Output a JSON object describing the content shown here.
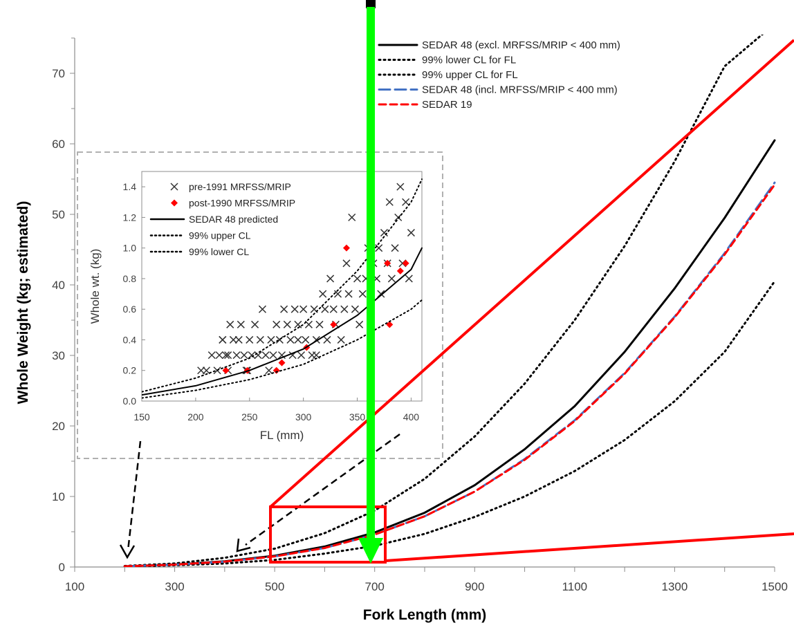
{
  "chart_data": [
    {
      "type": "line",
      "xlabel": "Fork Length (mm)",
      "ylabel": "Whole Weight (kg; estimated)",
      "xlim": [
        100,
        1500
      ],
      "ylim": [
        0,
        75
      ],
      "xticks": [
        "100",
        "300",
        "500",
        "700",
        "900",
        "1100",
        "1300",
        "1500"
      ],
      "yticks": [
        "0",
        "10",
        "20",
        "30",
        "40",
        "50",
        "60",
        "70"
      ],
      "x": [
        200,
        300,
        400,
        500,
        600,
        700,
        800,
        900,
        1000,
        1100,
        1200,
        1300,
        1400,
        1500
      ],
      "series": [
        {
          "name": "SEDAR 48 (excl. MRFSS/MRIP < 400 mm)",
          "style": "solid",
          "color": "#000000",
          "values": [
            0.1,
            0.35,
            0.8,
            1.6,
            2.9,
            4.9,
            7.7,
            11.6,
            16.7,
            22.8,
            30.5,
            39.5,
            49.5,
            60.5
          ]
        },
        {
          "name": "99% lower CL for FL",
          "style": "dotted",
          "color": "#000000",
          "values": [
            0.05,
            0.25,
            0.5,
            1.0,
            1.9,
            3.0,
            4.7,
            7.1,
            10.0,
            13.6,
            18.0,
            23.5,
            30.5,
            40.5
          ]
        },
        {
          "name": "99% upper CL for FL",
          "style": "dotted",
          "color": "#000000",
          "values": [
            0.15,
            0.5,
            1.3,
            2.6,
            4.8,
            8.0,
            12.5,
            18.5,
            26.0,
            35.0,
            45.5,
            57.5,
            71.0,
            77.0
          ]
        },
        {
          "name": "SEDAR 48 (incl. MRFSS/MRIP < 400 mm)",
          "style": "long-dash",
          "color": "#4472c4",
          "values": [
            0.1,
            0.33,
            0.75,
            1.5,
            2.7,
            4.6,
            7.2,
            10.7,
            15.3,
            20.8,
            27.5,
            35.5,
            44.5,
            54.5
          ]
        },
        {
          "name": "SEDAR 19",
          "style": "dash",
          "color": "#ff0000",
          "values": [
            0.1,
            0.33,
            0.76,
            1.5,
            2.7,
            4.6,
            7.2,
            10.7,
            15.2,
            20.7,
            27.4,
            35.4,
            44.3,
            54.2
          ]
        }
      ],
      "legend": "top-right"
    },
    {
      "type": "scatter",
      "xlabel": "FL (mm)",
      "ylabel": "Whole wt. (kg)",
      "xlim": [
        150,
        410
      ],
      "ylim": [
        0,
        1.5
      ],
      "xticks": [
        "150",
        "200",
        "250",
        "300",
        "350",
        "400"
      ],
      "yticks": [
        "0.0",
        "0.2",
        "0.4",
        "0.6",
        "0.8",
        "1.0",
        "1.2",
        "1.4"
      ],
      "series": [
        {
          "name": "pre-1991 MRFSS/MRIP",
          "marker": "x",
          "color": "#333333",
          "points": [
            [
              205,
              0.2
            ],
            [
              210,
              0.2
            ],
            [
              215,
              0.3
            ],
            [
              220,
              0.2
            ],
            [
              222,
              0.3
            ],
            [
              225,
              0.4
            ],
            [
              228,
              0.3
            ],
            [
              230,
              0.2
            ],
            [
              232,
              0.5
            ],
            [
              235,
              0.4
            ],
            [
              238,
              0.3
            ],
            [
              240,
              0.4
            ],
            [
              242,
              0.5
            ],
            [
              245,
              0.3
            ],
            [
              248,
              0.2
            ],
            [
              250,
              0.4
            ],
            [
              252,
              0.3
            ],
            [
              255,
              0.5
            ],
            [
              258,
              0.3
            ],
            [
              260,
              0.4
            ],
            [
              262,
              0.6
            ],
            [
              265,
              0.3
            ],
            [
              268,
              0.2
            ],
            [
              270,
              0.4
            ],
            [
              272,
              0.3
            ],
            [
              275,
              0.5
            ],
            [
              278,
              0.4
            ],
            [
              280,
              0.3
            ],
            [
              282,
              0.6
            ],
            [
              285,
              0.5
            ],
            [
              288,
              0.4
            ],
            [
              290,
              0.3
            ],
            [
              292,
              0.6
            ],
            [
              295,
              0.5
            ],
            [
              298,
              0.3
            ],
            [
              300,
              0.6
            ],
            [
              302,
              0.4
            ],
            [
              305,
              0.5
            ],
            [
              308,
              0.3
            ],
            [
              310,
              0.6
            ],
            [
              312,
              0.4
            ],
            [
              315,
              0.5
            ],
            [
              318,
              0.7
            ],
            [
              320,
              0.6
            ],
            [
              322,
              0.4
            ],
            [
              325,
              0.8
            ],
            [
              328,
              0.6
            ],
            [
              330,
              0.5
            ],
            [
              332,
              0.7
            ],
            [
              335,
              0.4
            ],
            [
              338,
              0.6
            ],
            [
              340,
              0.9
            ],
            [
              342,
              0.7
            ],
            [
              345,
              1.2
            ],
            [
              348,
              0.6
            ],
            [
              350,
              0.8
            ],
            [
              352,
              0.5
            ],
            [
              355,
              0.7
            ],
            [
              358,
              0.8
            ],
            [
              360,
              1.0
            ],
            [
              362,
              0.6
            ],
            [
              365,
              0.9
            ],
            [
              368,
              0.8
            ],
            [
              370,
              1.0
            ],
            [
              372,
              0.7
            ],
            [
              375,
              1.1
            ],
            [
              378,
              0.9
            ],
            [
              380,
              1.3
            ],
            [
              382,
              0.8
            ],
            [
              385,
              1.0
            ],
            [
              388,
              1.2
            ],
            [
              390,
              1.4
            ],
            [
              392,
              0.9
            ],
            [
              395,
              1.3
            ],
            [
              398,
              0.8
            ],
            [
              400,
              1.1
            ],
            [
              230,
              0.3
            ],
            [
              225,
              0.4
            ],
            [
              247,
              0.2
            ],
            [
              295,
              0.4
            ],
            [
              312,
              0.3
            ]
          ]
        },
        {
          "name": "post-1990 MRFSS/MRIP",
          "marker": "diamond",
          "color": "#ff0000",
          "points": [
            [
              228,
              0.2
            ],
            [
              248,
              0.2
            ],
            [
              275,
              0.2
            ],
            [
              280,
              0.25
            ],
            [
              303,
              0.35
            ],
            [
              328,
              0.5
            ],
            [
              340,
              1.0
            ],
            [
              378,
              0.9
            ],
            [
              380,
              0.5
            ],
            [
              390,
              0.85
            ],
            [
              395,
              0.9
            ]
          ]
        },
        {
          "name": "SEDAR 48 predicted",
          "style": "solid",
          "color": "#000000",
          "points": [
            [
              150,
              0.04
            ],
            [
              200,
              0.1
            ],
            [
              250,
              0.2
            ],
            [
              300,
              0.34
            ],
            [
              350,
              0.56
            ],
            [
              400,
              0.86
            ],
            [
              410,
              1.0
            ]
          ]
        },
        {
          "name": "99% upper CL",
          "style": "dotted",
          "color": "#000000",
          "points": [
            [
              150,
              0.06
            ],
            [
              200,
              0.15
            ],
            [
              250,
              0.28
            ],
            [
              300,
              0.5
            ],
            [
              350,
              0.85
            ],
            [
              400,
              1.3
            ],
            [
              410,
              1.45
            ]
          ]
        },
        {
          "name": "99% lower CL",
          "style": "dotted",
          "color": "#000000",
          "points": [
            [
              150,
              0.02
            ],
            [
              200,
              0.07
            ],
            [
              250,
              0.14
            ],
            [
              300,
              0.24
            ],
            [
              350,
              0.4
            ],
            [
              400,
              0.6
            ],
            [
              410,
              0.66
            ]
          ]
        }
      ],
      "legend": "top-left"
    }
  ]
}
